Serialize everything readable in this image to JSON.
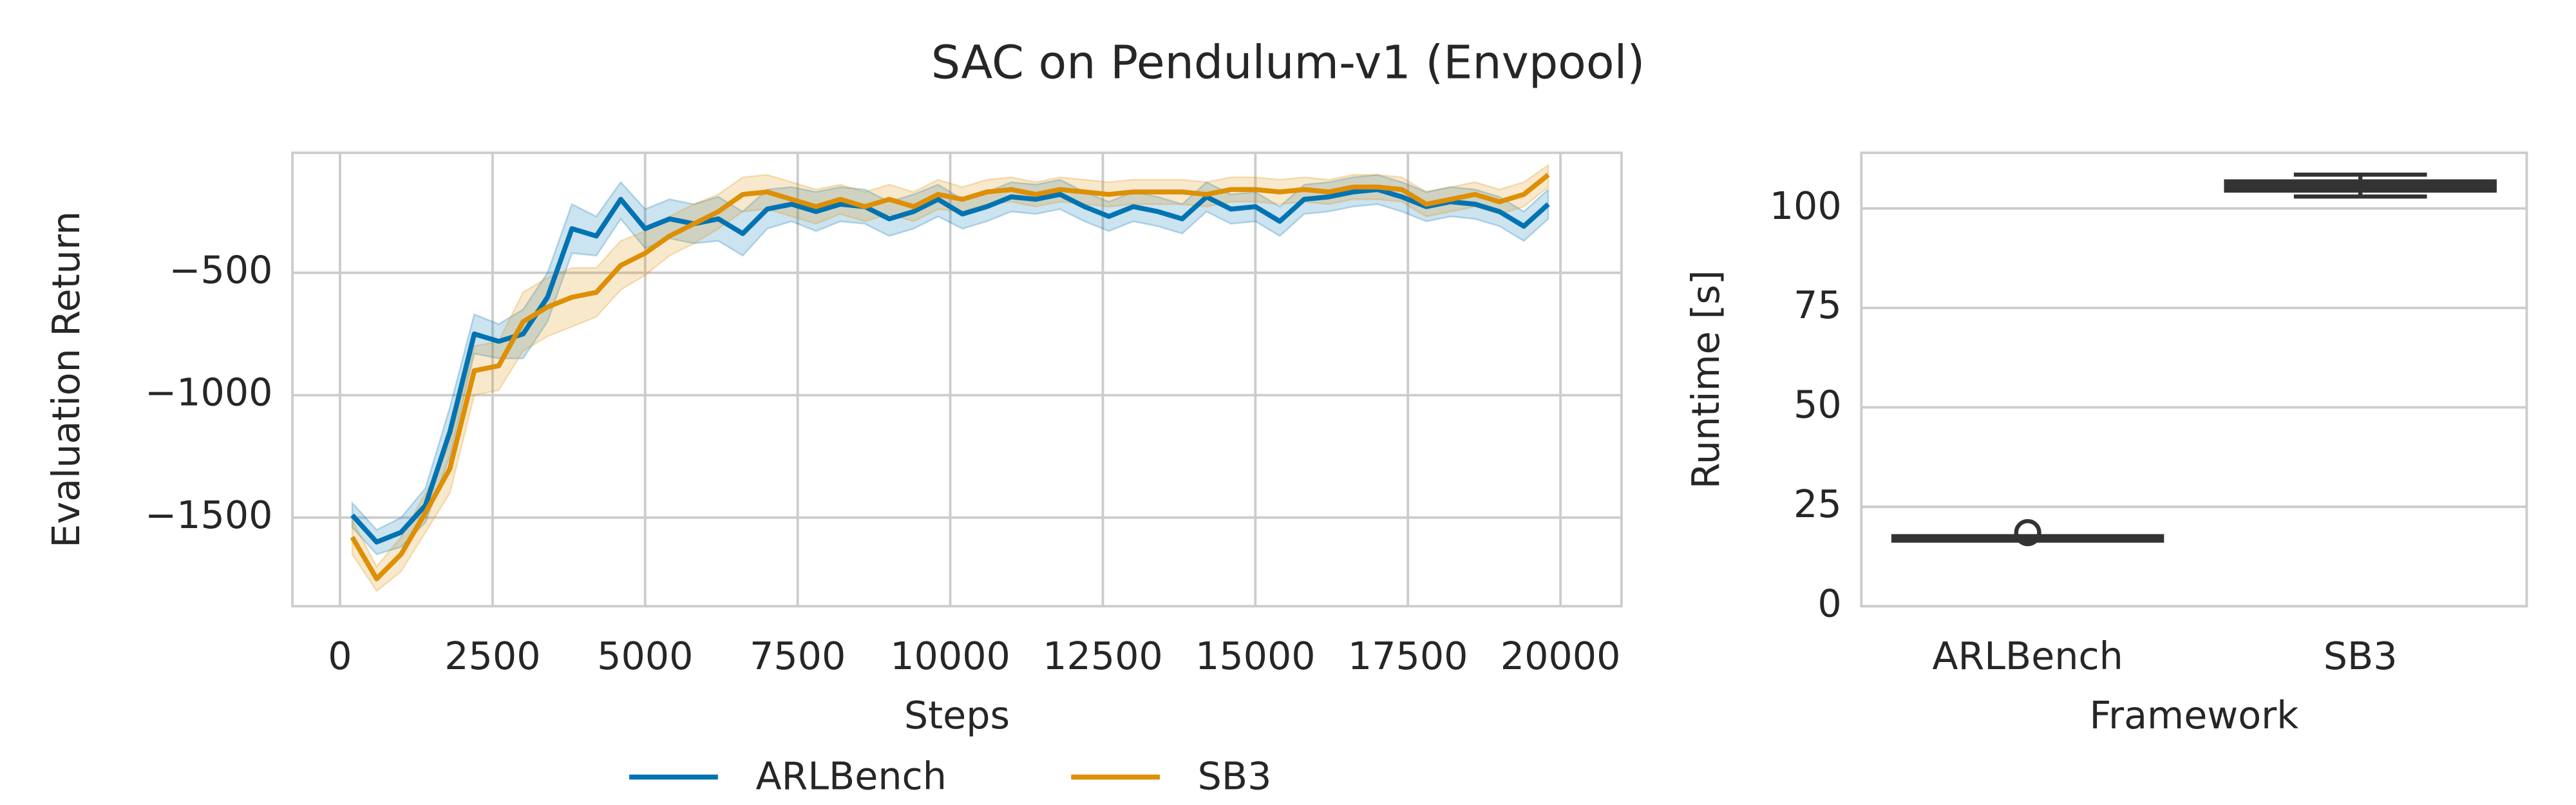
{
  "title": "SAC on Pendulum-v1 (Envpool)",
  "chart_data": [
    {
      "type": "line",
      "xlabel": "Steps",
      "ylabel": "Evaluation Return",
      "grid": "both",
      "legend": "below",
      "x": [
        200,
        600,
        1000,
        1400,
        1800,
        2200,
        2600,
        3000,
        3400,
        3800,
        4200,
        4600,
        5000,
        5400,
        5800,
        6200,
        6600,
        7000,
        7400,
        7800,
        8200,
        8600,
        9000,
        9400,
        9800,
        10200,
        10600,
        11000,
        11400,
        11800,
        12200,
        12600,
        13000,
        13400,
        13800,
        14200,
        14600,
        15000,
        15400,
        15800,
        16200,
        16600,
        17000,
        17400,
        17800,
        18200,
        18600,
        19000,
        19400,
        19800
      ],
      "xlim": [
        -780,
        21000
      ],
      "xticks": [
        0,
        2500,
        5000,
        7500,
        10000,
        12500,
        15000,
        17500,
        20000
      ],
      "ylim": [
        -1862,
        -10
      ],
      "yticks": [
        {
          "value": -1500,
          "label": "−1500"
        },
        {
          "value": -1000,
          "label": "−1000"
        },
        {
          "value": -500,
          "label": "−500"
        }
      ],
      "series": [
        {
          "name": "ARLBench",
          "color": "#0173b2",
          "values": [
            -1490,
            -1600,
            -1560,
            -1450,
            -1150,
            -750,
            -780,
            -750,
            -600,
            -320,
            -350,
            -200,
            -320,
            -280,
            -300,
            -280,
            -340,
            -240,
            -220,
            -250,
            -220,
            -230,
            -280,
            -250,
            -200,
            -260,
            -230,
            -190,
            -200,
            -180,
            -230,
            -270,
            -230,
            -250,
            -280,
            -190,
            -240,
            -230,
            -290,
            -200,
            -190,
            -170,
            -160,
            -190,
            -230,
            -210,
            -220,
            -250,
            -310,
            -220
          ],
          "lower": [
            -1540,
            -1650,
            -1620,
            -1520,
            -1250,
            -830,
            -850,
            -850,
            -700,
            -420,
            -430,
            -280,
            -400,
            -360,
            -380,
            -370,
            -430,
            -320,
            -290,
            -330,
            -290,
            -300,
            -350,
            -320,
            -270,
            -320,
            -290,
            -250,
            -260,
            -240,
            -290,
            -330,
            -290,
            -310,
            -340,
            -250,
            -300,
            -290,
            -350,
            -260,
            -250,
            -230,
            -220,
            -250,
            -290,
            -270,
            -280,
            -310,
            -370,
            -280
          ],
          "upper": [
            -1440,
            -1550,
            -1500,
            -1380,
            -1050,
            -670,
            -710,
            -650,
            -500,
            -220,
            -270,
            -130,
            -240,
            -200,
            -220,
            -190,
            -250,
            -160,
            -150,
            -170,
            -150,
            -160,
            -210,
            -180,
            -140,
            -200,
            -170,
            -130,
            -140,
            -120,
            -170,
            -210,
            -170,
            -190,
            -220,
            -130,
            -180,
            -170,
            -230,
            -140,
            -130,
            -110,
            -100,
            -130,
            -170,
            -150,
            -160,
            -190,
            -250,
            -160
          ]
        },
        {
          "name": "SB3",
          "color": "#de8f05",
          "values": [
            -1580,
            -1750,
            -1650,
            -1480,
            -1300,
            -900,
            -880,
            -700,
            -640,
            -600,
            -580,
            -470,
            -420,
            -350,
            -300,
            -250,
            -180,
            -170,
            -200,
            -230,
            -200,
            -230,
            -200,
            -230,
            -180,
            -200,
            -170,
            -160,
            -180,
            -160,
            -170,
            -180,
            -170,
            -170,
            -170,
            -180,
            -160,
            -160,
            -170,
            -160,
            -170,
            -150,
            -150,
            -160,
            -220,
            -200,
            -180,
            -210,
            -180,
            -100
          ],
          "lower": [
            -1650,
            -1800,
            -1720,
            -1560,
            -1400,
            -1000,
            -980,
            -820,
            -760,
            -720,
            -680,
            -570,
            -510,
            -430,
            -380,
            -320,
            -250,
            -240,
            -270,
            -300,
            -260,
            -290,
            -260,
            -290,
            -240,
            -250,
            -220,
            -210,
            -230,
            -210,
            -220,
            -230,
            -220,
            -220,
            -220,
            -230,
            -210,
            -210,
            -220,
            -210,
            -220,
            -200,
            -200,
            -210,
            -270,
            -250,
            -230,
            -260,
            -230,
            -150
          ],
          "upper": [
            -1510,
            -1700,
            -1580,
            -1400,
            -1200,
            -800,
            -780,
            -580,
            -520,
            -480,
            -480,
            -370,
            -330,
            -270,
            -220,
            -180,
            -110,
            -100,
            -130,
            -160,
            -140,
            -170,
            -140,
            -170,
            -120,
            -150,
            -120,
            -110,
            -130,
            -110,
            -120,
            -130,
            -120,
            -120,
            -120,
            -130,
            -110,
            -110,
            -120,
            -110,
            -120,
            -100,
            -100,
            -110,
            -170,
            -150,
            -130,
            -160,
            -130,
            -60
          ]
        }
      ]
    },
    {
      "type": "box",
      "xlabel": "Framework",
      "ylabel": "Runtime [s]",
      "grid": "y",
      "color": "#333333",
      "categories": [
        "ARLBench",
        "SB3"
      ],
      "ylim": [
        0,
        114
      ],
      "yticks": [
        0,
        25,
        50,
        75,
        100
      ],
      "whisker_low": [
        16.7,
        103
      ],
      "q1": [
        16.8,
        104.8
      ],
      "median": [
        17,
        105.5
      ],
      "q3": [
        17.3,
        106.5
      ],
      "whisker_high": [
        17.5,
        108.5
      ],
      "outliers": [
        [
          18.5
        ],
        []
      ]
    }
  ]
}
